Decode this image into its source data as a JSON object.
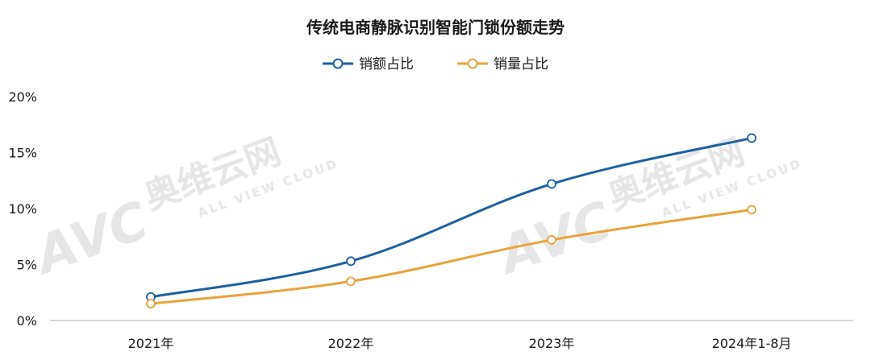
{
  "watermark": {
    "brand": "AVC",
    "cn": "奥维云网",
    "en": "ALL VIEW CLOUD"
  },
  "chart_data": {
    "type": "line",
    "title": "传统电商静脉识别智能门锁份额走势",
    "categories": [
      "2021年",
      "2022年",
      "2023年",
      "2024年1-8月"
    ],
    "series": [
      {
        "name": "销额占比",
        "color": "#1f5f9e",
        "values": [
          2.1,
          5.3,
          12.2,
          16.3
        ]
      },
      {
        "name": "销量占比",
        "color": "#e8a33c",
        "values": [
          1.5,
          3.5,
          7.2,
          9.9
        ]
      }
    ],
    "yticks": [
      "0%",
      "5%",
      "10%",
      "15%",
      "20%"
    ],
    "ylim": [
      0,
      20
    ],
    "grid": false,
    "legend_position": "top-center"
  }
}
